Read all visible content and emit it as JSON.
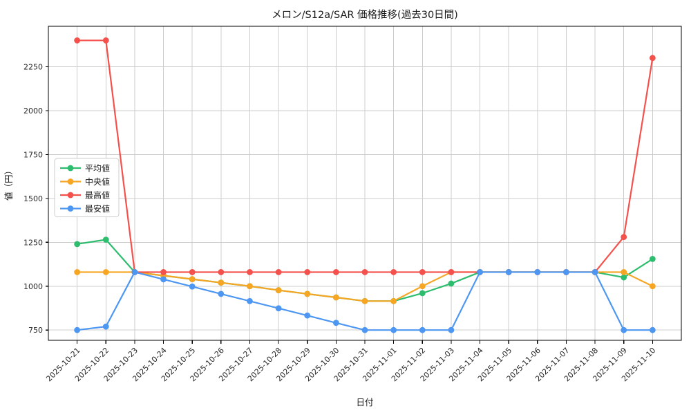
{
  "window": {
    "title": "メロン/S12a/SAR 価格推移(過去30日間)"
  },
  "chart_data": {
    "type": "line",
    "title": "メロン/S12a/SAR 価格推移(過去30日間)",
    "xlabel": "日付",
    "ylabel": "値（円）",
    "grid": true,
    "legend_position": "center-left",
    "background_color": "#ffffff",
    "grid_color": "#cccccc",
    "spine_color": "#000000",
    "yticks": [
      750,
      1000,
      1250,
      1500,
      1750,
      2000,
      2250
    ],
    "ylim": [
      692,
      2480
    ],
    "x": [
      "2025-10-21",
      "2025-10-22",
      "2025-10-23",
      "2025-10-24",
      "2025-10-25",
      "2025-10-26",
      "2025-10-27",
      "2025-10-28",
      "2025-10-29",
      "2025-10-30",
      "2025-10-31",
      "2025-11-01",
      "2025-11-02",
      "2025-11-03",
      "2025-11-04",
      "2025-11-05",
      "2025-11-06",
      "2025-11-07",
      "2025-11-08",
      "2025-11-09",
      "2025-11-10"
    ],
    "series": [
      {
        "name": "平均値",
        "color": "#2ebd6e",
        "values": [
          1240,
          1265,
          1080,
          1060,
          1040,
          1020,
          1000,
          977,
          956,
          936,
          915,
          915,
          960,
          1015,
          1080,
          1080,
          1080,
          1080,
          1080,
          1050,
          1155
        ]
      },
      {
        "name": "中央値",
        "color": "#f6a623",
        "values": [
          1080,
          1080,
          1080,
          1060,
          1040,
          1020,
          1000,
          977,
          956,
          936,
          915,
          915,
          1000,
          1080,
          1080,
          1080,
          1080,
          1080,
          1080,
          1080,
          1000
        ]
      },
      {
        "name": "最高値",
        "color": "#f4514c",
        "values": [
          2400,
          2400,
          1080,
          1080,
          1080,
          1080,
          1080,
          1080,
          1080,
          1080,
          1080,
          1080,
          1080,
          1080,
          1080,
          1080,
          1080,
          1080,
          1080,
          1280,
          2300
        ]
      },
      {
        "name": "最安値",
        "color": "#4d97f3",
        "values": [
          750,
          770,
          1080,
          1039,
          998,
          956,
          915,
          874,
          833,
          791,
          750,
          750,
          750,
          750,
          1080,
          1080,
          1080,
          1080,
          1080,
          750,
          750
        ]
      }
    ]
  }
}
